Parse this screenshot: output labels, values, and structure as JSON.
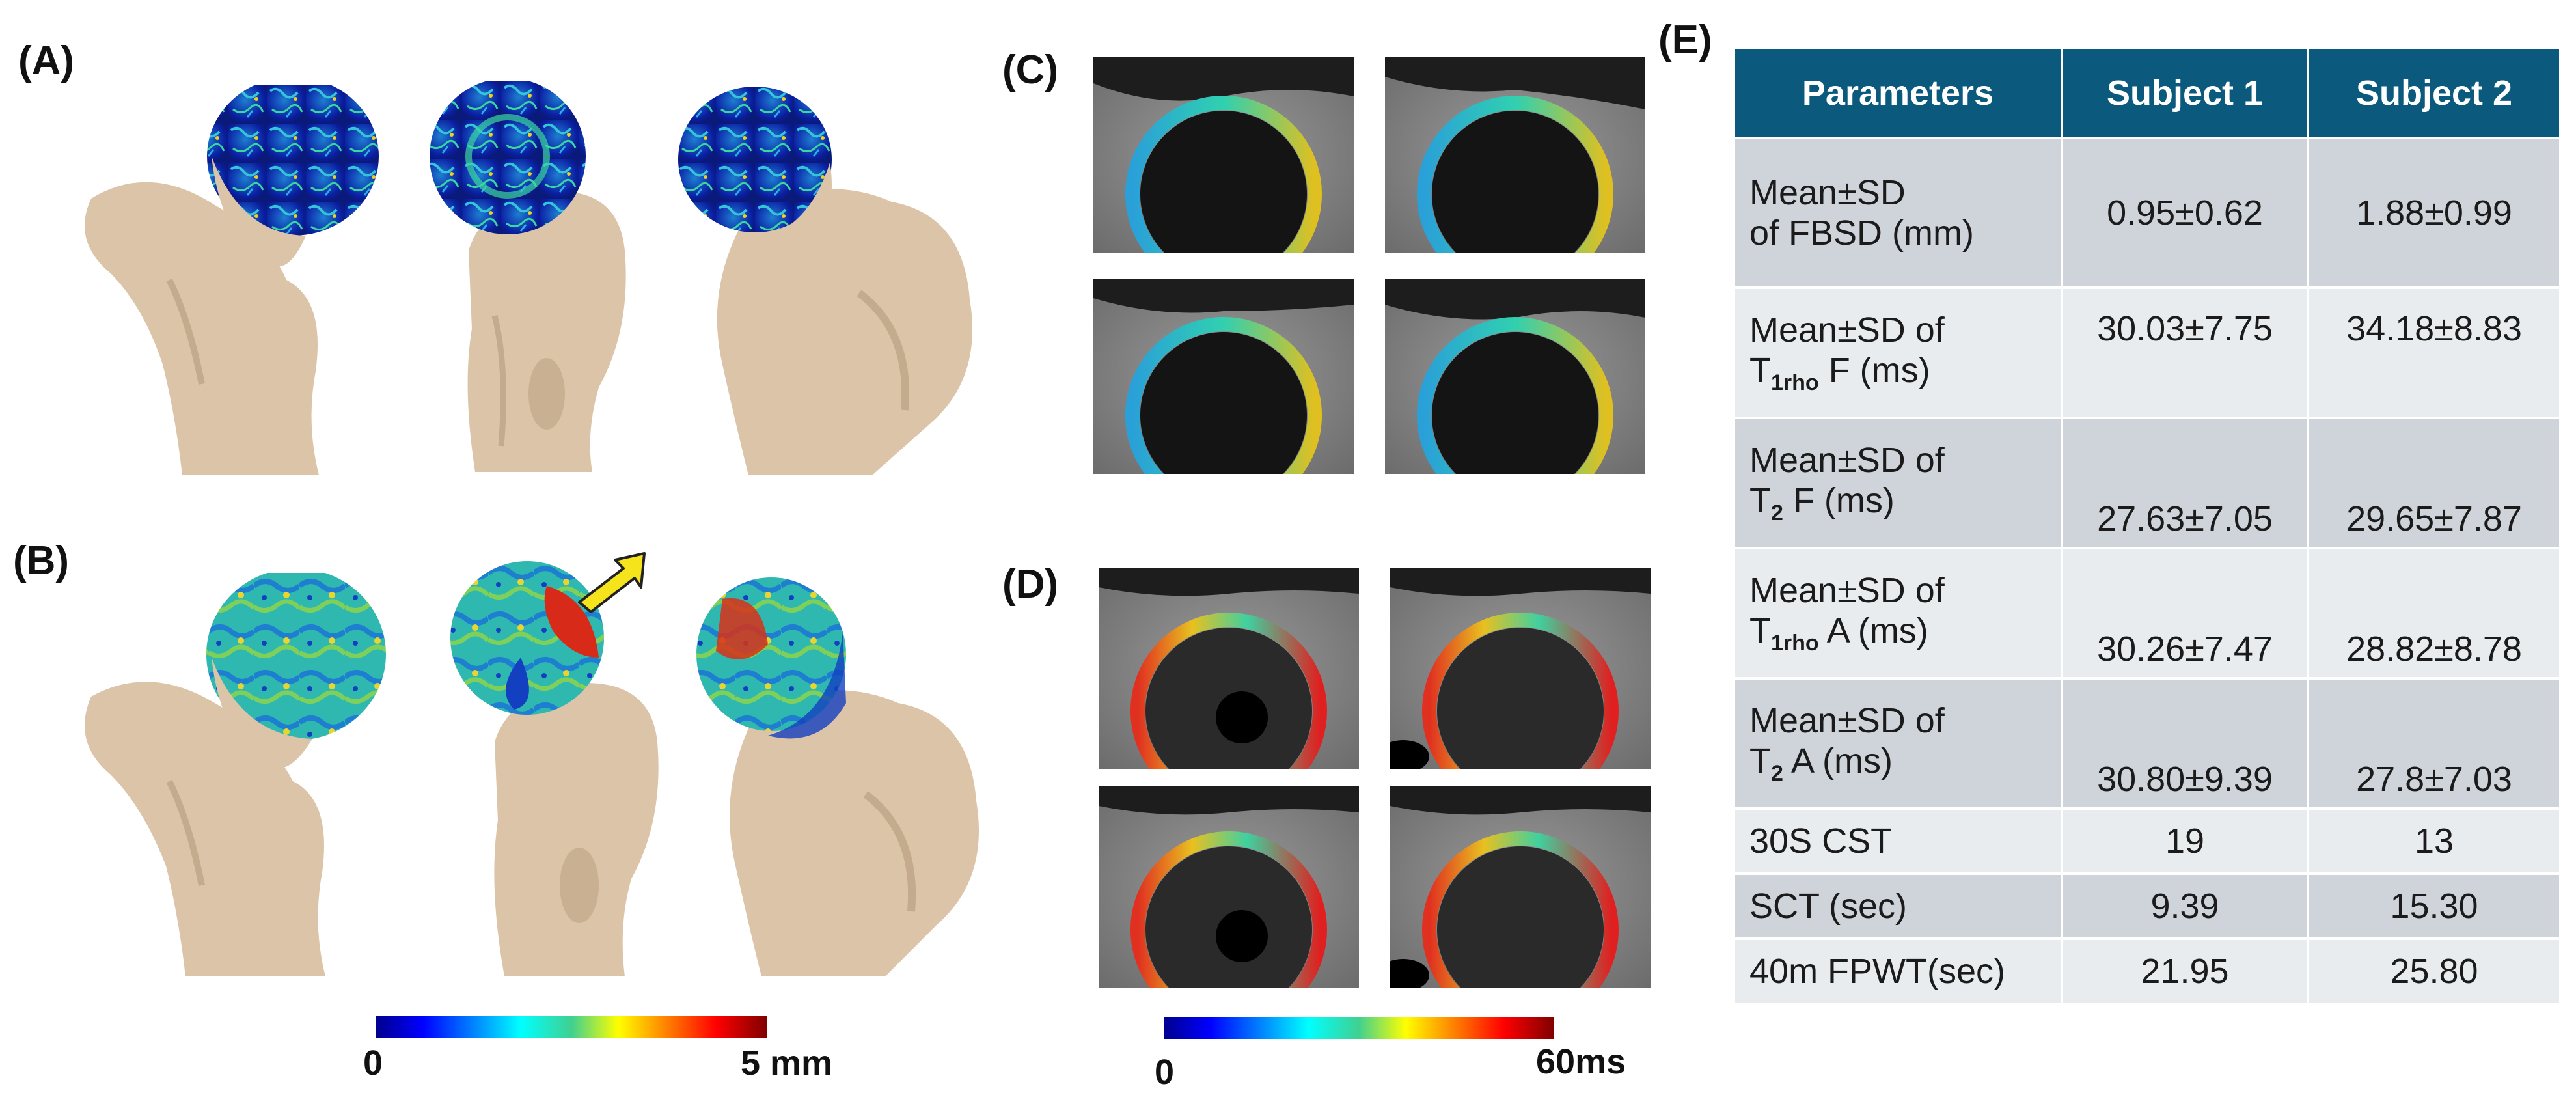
{
  "panels": {
    "a": "(A)",
    "b": "(B)",
    "c": "(C)",
    "d": "(D)",
    "e": "(E)"
  },
  "colorbar_left": {
    "min": "0",
    "max": "5 mm"
  },
  "colorbar_right": {
    "min": "0",
    "max": "60ms"
  },
  "colors": {
    "bone": "#dcc4a8",
    "table_header": "#0b5a7e",
    "row_dark": "#cfd4da",
    "row_light": "#e9ecef",
    "arrow": "#f5e31c"
  },
  "table": {
    "headers": [
      "Parameters",
      "Subject 1",
      "Subject 2"
    ],
    "rows": [
      {
        "param_line1": "Mean±SD",
        "param_line2": "of FBSD (mm)",
        "s1": "0.95±0.62",
        "s2": "1.88±0.99"
      },
      {
        "param_line1": "Mean±SD of",
        "param_pre": "T",
        "param_sub": "1rho",
        "param_post": " F (ms)",
        "s1": "30.03±7.75",
        "s2": "34.18±8.83"
      },
      {
        "param_line1": "Mean±SD of",
        "param_pre": "T",
        "param_sub": "2",
        "param_post": " F (ms)",
        "s1": "27.63±7.05",
        "s2": "29.65±7.87"
      },
      {
        "param_line1": "Mean±SD of",
        "param_pre": "T",
        "param_sub": "1rho",
        "param_post": " A (ms)",
        "s1": "30.26±7.47",
        "s2": "28.82±8.78"
      },
      {
        "param_line1": "Mean±SD of",
        "param_pre": "T",
        "param_sub": "2",
        "param_post": " A (ms)",
        "s1": "30.80±9.39",
        "s2": "27.8±7.03"
      },
      {
        "param": "30S CST",
        "s1": "19",
        "s2": "13"
      },
      {
        "param": "SCT (sec)",
        "s1": "9.39",
        "s2": "15.30"
      },
      {
        "param": "40m FPWT(sec)",
        "s1": "21.95",
        "s2": "25.80"
      }
    ]
  }
}
